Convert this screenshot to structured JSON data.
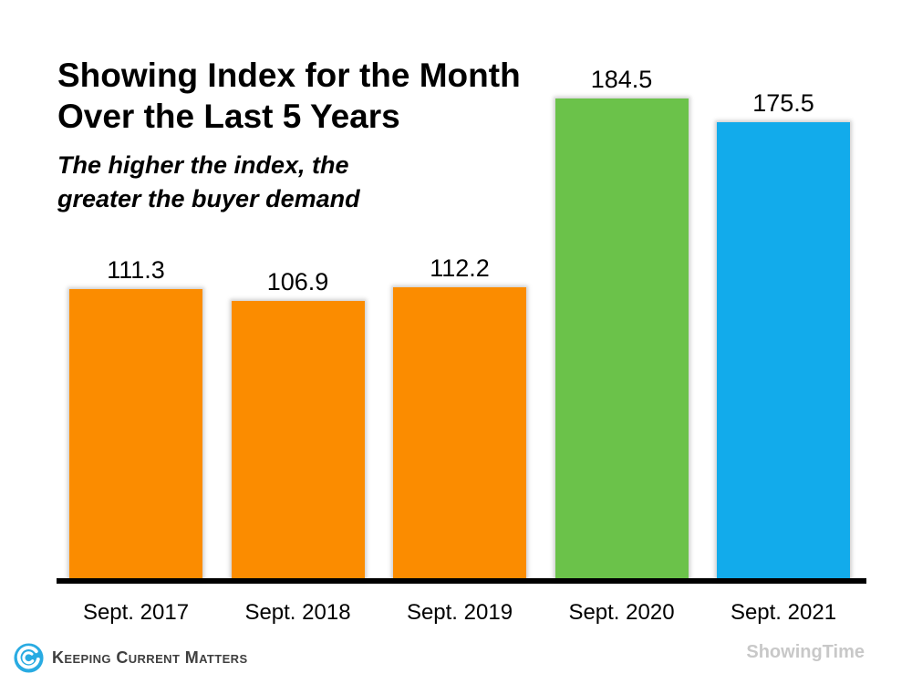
{
  "chart_data": {
    "type": "bar",
    "title": "Showing Index for the Month Over the Last 5 Years",
    "title_lines": [
      "Showing Index for the Month",
      "Over the Last 5 Years"
    ],
    "subtitle": "The higher the index, the greater the buyer demand",
    "subtitle_lines": [
      "The higher the index, the",
      "greater the buyer demand"
    ],
    "categories": [
      "Sept. 2017",
      "Sept. 2018",
      "Sept. 2019",
      "Sept. 2020",
      "Sept. 2021"
    ],
    "values": [
      111.3,
      106.9,
      112.2,
      184.5,
      175.5
    ],
    "bar_colors": [
      "#FB8C00",
      "#FB8C00",
      "#FB8C00",
      "#6BC24A",
      "#12ABEB"
    ],
    "value_labels_shown": true,
    "xlabel": "",
    "ylabel": "",
    "ylim": [
      0,
      200
    ],
    "grid": false,
    "legend": false,
    "axis_color": "#000000"
  },
  "footer": {
    "brand": "Keeping Current Matters",
    "brand_color": "#3F3F3F",
    "logo_color": "#29ABE2",
    "source": "ShowingTime",
    "source_color": "#C8C8C8"
  }
}
